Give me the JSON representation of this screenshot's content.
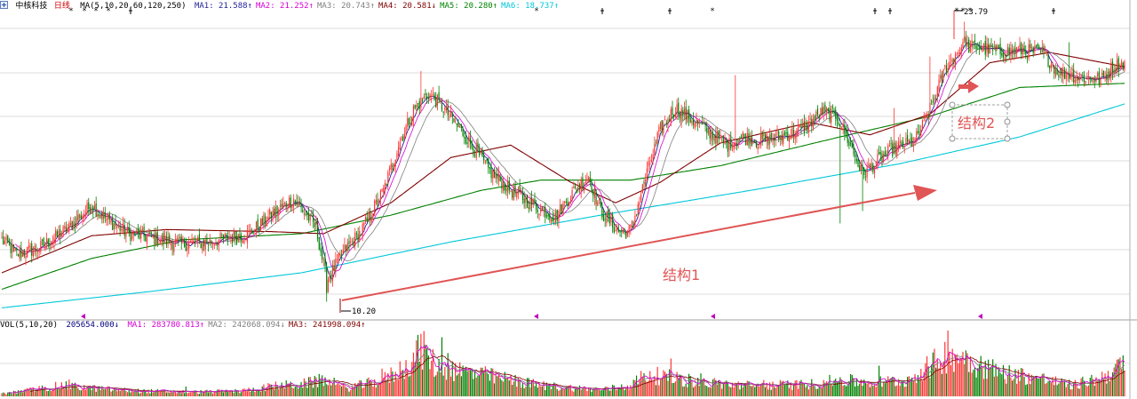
{
  "header": {
    "stock_name": "中核科技",
    "period": "日线",
    "ma_params": "MA(5,10,20,60,120,250)",
    "ma": [
      {
        "label": "MA1:",
        "value": "21.588",
        "dir": "↑",
        "color": "#1f1f99"
      },
      {
        "label": "MA2:",
        "value": "21.252",
        "dir": "↑",
        "color": "#d400d4"
      },
      {
        "label": "MA3:",
        "value": "20.743",
        "dir": "↑",
        "color": "#808080"
      },
      {
        "label": "MA4:",
        "value": "20.581",
        "dir": "↓",
        "color": "#800000"
      },
      {
        "label": "MA5:",
        "value": "20.280",
        "dir": "↑",
        "color": "#008000"
      },
      {
        "label": "MA6:",
        "value": "18.737",
        "dir": "↑",
        "color": "#00c8d8"
      }
    ]
  },
  "vol_header": {
    "params": "VOL(5,10,20)",
    "value": "205654.000",
    "value_dir": "↓",
    "ma": [
      {
        "label": "MA1:",
        "value": "283780.813",
        "dir": "↑",
        "color": "#d400d4"
      },
      {
        "label": "MA2:",
        "value": "242068.094",
        "dir": "↓",
        "color": "#808080"
      },
      {
        "label": "MA3:",
        "value": "241998.094",
        "dir": "↑",
        "color": "#800000"
      }
    ]
  },
  "annotations": {
    "structure1": "结构1",
    "structure2": "结构2",
    "low_label": "10.20",
    "high_label": "23.79"
  },
  "colors": {
    "up": "#ff3333",
    "down": "#008000",
    "arrow": "#e05555",
    "ma_short": "#1f1f99",
    "ma_mid": "#d400d4",
    "ma_60": "#800000",
    "ma_120": "#008000",
    "ma_250": "#00c8d8",
    "grid": "#dcdcdc"
  },
  "chart_data": {
    "type": "candlestick",
    "low_point": 10.2,
    "high_point": 23.79,
    "trend_arrow_from": 10.2,
    "structure2_arrow_to": 22.3,
    "close_keypoints": [
      [
        0,
        13.2
      ],
      [
        10,
        12.5
      ],
      [
        25,
        12.8
      ],
      [
        45,
        13.8
      ],
      [
        60,
        14.9
      ],
      [
        70,
        14.2
      ],
      [
        85,
        13.5
      ],
      [
        100,
        13.3
      ],
      [
        120,
        13.0
      ],
      [
        140,
        13.1
      ],
      [
        165,
        13.5
      ],
      [
        180,
        14.4
      ],
      [
        195,
        15.2
      ],
      [
        210,
        13.8
      ],
      [
        217,
        11.2
      ],
      [
        228,
        12.6
      ],
      [
        240,
        13.6
      ],
      [
        255,
        15.6
      ],
      [
        265,
        17.8
      ],
      [
        275,
        19.5
      ],
      [
        285,
        20.3
      ],
      [
        295,
        19.6
      ],
      [
        310,
        18.2
      ],
      [
        325,
        16.6
      ],
      [
        340,
        15.6
      ],
      [
        355,
        14.9
      ],
      [
        370,
        14.3
      ],
      [
        380,
        15.4
      ],
      [
        392,
        16.3
      ],
      [
        400,
        14.6
      ],
      [
        412,
        13.6
      ],
      [
        420,
        13.6
      ],
      [
        430,
        16.2
      ],
      [
        440,
        18.6
      ],
      [
        450,
        19.6
      ],
      [
        460,
        19.1
      ],
      [
        475,
        18.3
      ],
      [
        485,
        17.8
      ],
      [
        495,
        18.2
      ],
      [
        505,
        18.0
      ],
      [
        520,
        18.2
      ],
      [
        535,
        18.6
      ],
      [
        548,
        19.4
      ],
      [
        558,
        19.2
      ],
      [
        565,
        18.1
      ],
      [
        575,
        16.4
      ],
      [
        583,
        16.9
      ],
      [
        595,
        17.6
      ],
      [
        610,
        18.0
      ],
      [
        620,
        19.5
      ],
      [
        630,
        21.5
      ],
      [
        640,
        22.5
      ],
      [
        650,
        22.6
      ],
      [
        665,
        22.3
      ],
      [
        680,
        22.4
      ],
      [
        695,
        22.3
      ],
      [
        705,
        21.4
      ],
      [
        720,
        21.1
      ],
      [
        735,
        21.0
      ],
      [
        742,
        21.6
      ],
      [
        750,
        21.8
      ]
    ],
    "volume_keypoints": [
      [
        0,
        0.05
      ],
      [
        10,
        0.08
      ],
      [
        20,
        0.12
      ],
      [
        40,
        0.2
      ],
      [
        60,
        0.15
      ],
      [
        90,
        0.1
      ],
      [
        130,
        0.08
      ],
      [
        160,
        0.1
      ],
      [
        185,
        0.2
      ],
      [
        200,
        0.22
      ],
      [
        215,
        0.3
      ],
      [
        230,
        0.15
      ],
      [
        255,
        0.3
      ],
      [
        270,
        0.55
      ],
      [
        280,
        0.9
      ],
      [
        290,
        0.55
      ],
      [
        320,
        0.4
      ],
      [
        360,
        0.2
      ],
      [
        400,
        0.12
      ],
      [
        420,
        0.2
      ],
      [
        430,
        0.4
      ],
      [
        445,
        0.35
      ],
      [
        470,
        0.25
      ],
      [
        500,
        0.2
      ],
      [
        540,
        0.22
      ],
      [
        560,
        0.3
      ],
      [
        580,
        0.25
      ],
      [
        605,
        0.3
      ],
      [
        620,
        0.55
      ],
      [
        633,
        0.8
      ],
      [
        645,
        0.7
      ],
      [
        665,
        0.45
      ],
      [
        690,
        0.35
      ],
      [
        715,
        0.2
      ],
      [
        735,
        0.35
      ],
      [
        745,
        0.55
      ],
      [
        750,
        0.45
      ]
    ]
  }
}
